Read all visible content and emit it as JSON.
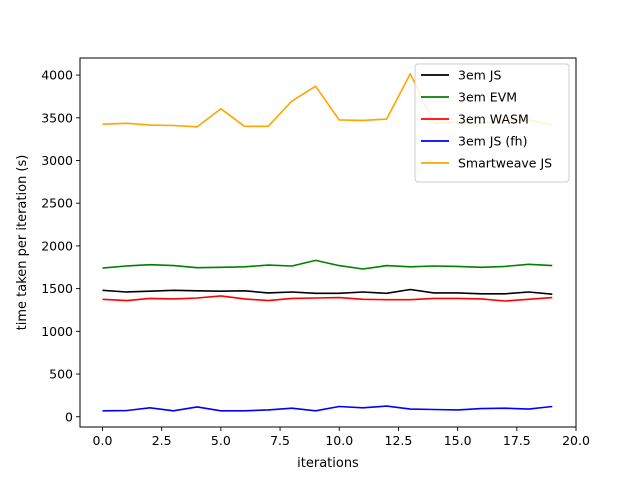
{
  "chart_data": {
    "type": "line",
    "title": "",
    "xlabel": "iterations",
    "ylabel": "time taken per iteration (s)",
    "xlim": [
      -0.95,
      20.0
    ],
    "ylim": [
      -120,
      4200
    ],
    "xticks": [
      0.0,
      2.5,
      5.0,
      7.5,
      10.0,
      12.5,
      15.0,
      17.5,
      20.0
    ],
    "xtick_labels": [
      "0.0",
      "2.5",
      "5.0",
      "7.5",
      "10.0",
      "12.5",
      "15.0",
      "17.5",
      "20.0"
    ],
    "yticks": [
      0,
      500,
      1000,
      1500,
      2000,
      2500,
      3000,
      3500,
      4000
    ],
    "ytick_labels": [
      "0",
      "500",
      "1000",
      "1500",
      "2000",
      "2500",
      "3000",
      "3500",
      "4000"
    ],
    "grid": false,
    "legend_position": "top-right",
    "x": [
      0,
      1,
      2,
      3,
      4,
      5,
      6,
      7,
      8,
      9,
      10,
      11,
      12,
      13,
      14,
      15,
      16,
      17,
      18,
      19
    ],
    "series": [
      {
        "name": "3em JS",
        "color": "#000000",
        "values": [
          1480,
          1460,
          1470,
          1480,
          1475,
          1470,
          1475,
          1450,
          1460,
          1445,
          1445,
          1460,
          1445,
          1490,
          1450,
          1450,
          1440,
          1440,
          1460,
          1435
        ]
      },
      {
        "name": "3em EVM",
        "color": "#008000",
        "values": [
          1740,
          1765,
          1780,
          1770,
          1745,
          1750,
          1755,
          1775,
          1765,
          1830,
          1770,
          1730,
          1770,
          1755,
          1765,
          1760,
          1750,
          1760,
          1785,
          1770
        ]
      },
      {
        "name": "3em WASM",
        "color": "#ff0000",
        "values": [
          1375,
          1360,
          1385,
          1380,
          1390,
          1415,
          1380,
          1360,
          1385,
          1390,
          1395,
          1375,
          1370,
          1370,
          1385,
          1385,
          1380,
          1355,
          1375,
          1395
        ]
      },
      {
        "name": "3em JS (fh)",
        "color": "#0000ff",
        "values": [
          70,
          72,
          105,
          70,
          115,
          70,
          70,
          80,
          100,
          70,
          120,
          105,
          125,
          90,
          85,
          80,
          95,
          100,
          90,
          120
        ]
      },
      {
        "name": "Smartweave JS",
        "color": "#ffa500",
        "values": [
          3425,
          3435,
          3415,
          3410,
          3395,
          3605,
          3400,
          3400,
          3695,
          3870,
          3475,
          3470,
          3485,
          4015,
          3440,
          3450,
          3440,
          3475,
          3475,
          3415
        ]
      }
    ]
  }
}
